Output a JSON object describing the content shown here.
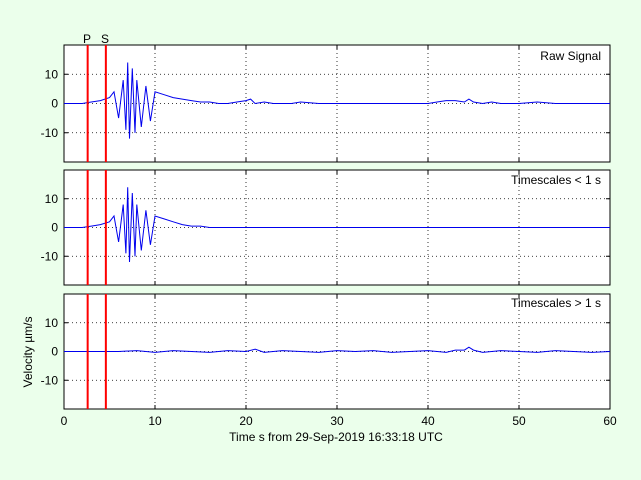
{
  "colors": {
    "background": "#ebffeb",
    "axes_bg": "#ffffff",
    "signal": "#0000ee",
    "phase_marker": "#ff0000",
    "grid": "#000000"
  },
  "chart_data": {
    "type": "line",
    "xlabel": "Time s from 29-Sep-2019 16:33:18 UTC",
    "ylabel": "Velocity µm/s",
    "xlim": [
      0,
      60
    ],
    "xticks": [
      "0",
      "10",
      "20",
      "30",
      "40",
      "50",
      "60"
    ],
    "grid": true,
    "phase_markers": [
      {
        "label": "P",
        "time": 2.6
      },
      {
        "label": "S",
        "time": 4.6
      }
    ],
    "panels": [
      {
        "title": "Raw Signal",
        "ylim": [
          -20,
          20
        ],
        "yticks": [
          "10",
          "0",
          "-10"
        ],
        "x": [
          0,
          1,
          2,
          3,
          4,
          5,
          5.5,
          6,
          6.5,
          6.8,
          7,
          7.2,
          7.5,
          7.8,
          8,
          8.5,
          9,
          9.5,
          10,
          11,
          12,
          13,
          14,
          15,
          16,
          17,
          18,
          19,
          20,
          20.5,
          21,
          22,
          23,
          24,
          25,
          26,
          28,
          30,
          32,
          34,
          36,
          38,
          40,
          41,
          42,
          43,
          44,
          44.5,
          45,
          46,
          47,
          48,
          50,
          52,
          54,
          56,
          58,
          60
        ],
        "values": [
          0,
          0,
          0,
          0.5,
          1,
          2,
          4,
          -5,
          8,
          -9,
          14,
          -12,
          12,
          -10,
          8,
          -8,
          6,
          -6,
          4,
          3,
          2,
          1.5,
          1,
          0.5,
          0.5,
          0,
          0,
          0.5,
          1,
          1.5,
          0,
          0.5,
          0,
          0,
          0,
          0.5,
          0,
          0,
          0,
          0,
          0,
          0,
          0,
          0.5,
          1,
          1,
          0.5,
          1.5,
          0.5,
          0,
          0.5,
          0,
          0,
          0.5,
          0,
          0,
          0,
          0
        ]
      },
      {
        "title": "Timescales < 1 s",
        "ylim": [
          -20,
          20
        ],
        "yticks": [
          "10",
          "0",
          "-10"
        ],
        "x": [
          0,
          1,
          2,
          3,
          4,
          5,
          5.5,
          6,
          6.5,
          6.8,
          7,
          7.2,
          7.5,
          7.8,
          8,
          8.5,
          9,
          9.5,
          10,
          11,
          12,
          13,
          14,
          15,
          16,
          18,
          20,
          25,
          30,
          35,
          40,
          45,
          50,
          55,
          60
        ],
        "values": [
          0,
          0,
          0,
          0.5,
          1,
          2,
          4,
          -5,
          8,
          -9,
          14,
          -12,
          12,
          -10,
          8,
          -8,
          6,
          -6,
          4,
          3,
          2,
          1,
          0.5,
          0.5,
          0,
          0,
          0,
          0,
          0,
          0,
          0,
          0,
          0,
          0,
          0
        ]
      },
      {
        "title": "Timescales > 1 s",
        "ylim": [
          -20,
          20
        ],
        "yticks": [
          "10",
          "0",
          "-10"
        ],
        "x": [
          0,
          2,
          4,
          6,
          8,
          10,
          12,
          14,
          16,
          18,
          20,
          21,
          22,
          24,
          26,
          28,
          30,
          32,
          34,
          36,
          38,
          40,
          42,
          43,
          44,
          44.5,
          45,
          46,
          48,
          50,
          52,
          54,
          56,
          58,
          60
        ],
        "values": [
          0,
          0,
          0,
          0,
          0.3,
          -0.3,
          0.3,
          0,
          -0.3,
          0.3,
          0,
          0.8,
          -0.3,
          0.3,
          0,
          -0.3,
          0.3,
          0,
          0.3,
          -0.3,
          0,
          0.3,
          -0.3,
          0.5,
          0.5,
          1.5,
          0.5,
          -0.3,
          0.3,
          0,
          -0.3,
          0.3,
          0,
          -0.3,
          0
        ]
      }
    ]
  }
}
